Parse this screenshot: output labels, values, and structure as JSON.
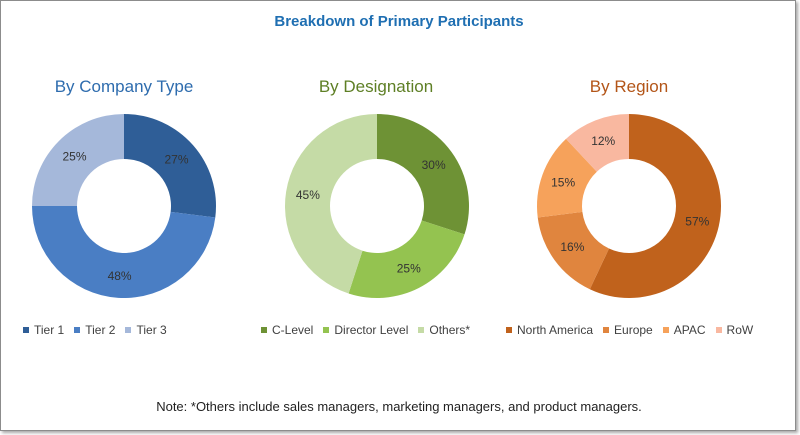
{
  "title": "Breakdown of Primary Participants",
  "note": "Note: *Others include sales managers, marketing managers, and product managers.",
  "chart_data": [
    {
      "type": "pie",
      "id": "company",
      "title": "By Company Type",
      "categories": [
        "Tier 1",
        "Tier 2",
        "Tier 3"
      ],
      "values": [
        27,
        48,
        25
      ],
      "labels": [
        "27%",
        "48%",
        "25%"
      ],
      "colors": [
        "#2f5e97",
        "#4a7ec4",
        "#a5b8da"
      ],
      "legend_position": "bottom"
    },
    {
      "type": "pie",
      "id": "designation",
      "title": "By Designation",
      "categories": [
        "C-Level",
        "Director Level",
        "Others*"
      ],
      "values": [
        30,
        25,
        45
      ],
      "labels": [
        "30%",
        "25%",
        "45%"
      ],
      "colors": [
        "#6e9235",
        "#94c350",
        "#c5dba6"
      ],
      "legend_position": "bottom"
    },
    {
      "type": "pie",
      "id": "region",
      "title": "By Region",
      "categories": [
        "North America",
        "Europe",
        "APAC",
        "RoW"
      ],
      "values": [
        57,
        16,
        15,
        12
      ],
      "labels": [
        "57%",
        "16%",
        "15%",
        "12%"
      ],
      "colors": [
        "#c0621c",
        "#e0853e",
        "#f6a25b",
        "#f9b8a0"
      ],
      "legend_position": "bottom"
    }
  ]
}
